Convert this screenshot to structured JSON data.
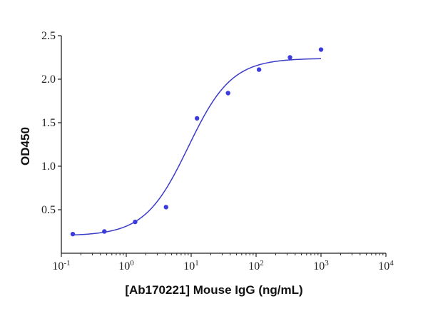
{
  "chart_data": {
    "type": "scatter",
    "title": "",
    "xlabel": "[Ab170221] Mouse IgG (ng/mL)",
    "ylabel": "OD450",
    "xscale": "log",
    "xlim": [
      0.1,
      10000
    ],
    "ylim": [
      0,
      2.5
    ],
    "x_ticks": [
      "10^-1",
      "10^0",
      "10^1",
      "10^2",
      "10^3",
      "10^4"
    ],
    "y_ticks": [
      "0.5",
      "1.0",
      "1.5",
      "2.0",
      "2.5"
    ],
    "grid": false,
    "legend": null,
    "series": [
      {
        "name": "Measured OD450",
        "marker": "circle",
        "color": "#3b3be0",
        "x": [
          0.15,
          0.46,
          1.37,
          4.1,
          12.3,
          37,
          111,
          333,
          1000
        ],
        "y": [
          0.22,
          0.25,
          0.36,
          0.53,
          1.55,
          1.84,
          2.11,
          2.25,
          2.34
        ]
      },
      {
        "name": "4PL fit",
        "type": "line",
        "color": "#3b3bc8",
        "bottom": 0.2,
        "top": 2.24,
        "ec50": 9.0,
        "hill": 1.3,
        "x_range": [
          0.15,
          1000
        ]
      }
    ]
  },
  "axes": {
    "x_title": "[Ab170221] Mouse IgG (ng/mL)",
    "y_title": "OD450",
    "x_tick_base": "10",
    "x_tick_exponents": [
      "-1",
      "0",
      "1",
      "2",
      "3",
      "4"
    ],
    "y_tick_labels": [
      "0.5",
      "1.0",
      "1.5",
      "2.0",
      "2.5"
    ]
  }
}
